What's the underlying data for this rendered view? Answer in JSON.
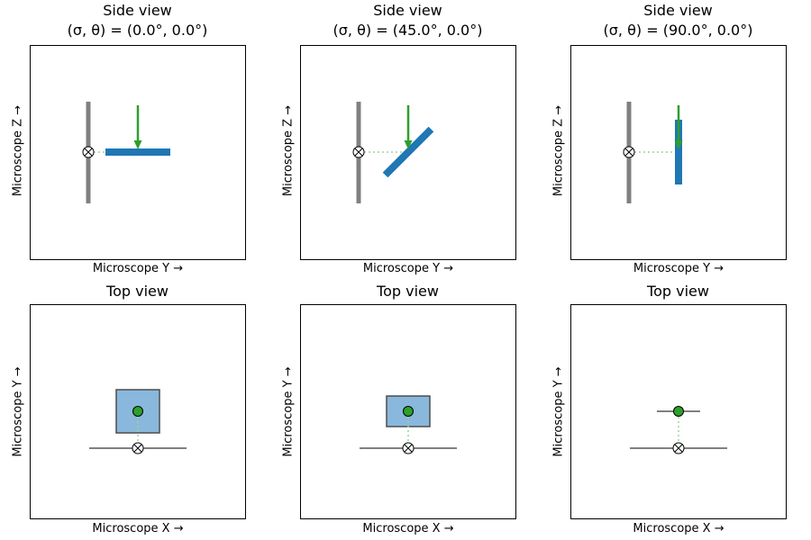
{
  "side_views": [
    {
      "title": "Side view",
      "subtitle_prefix": "(σ, θ) = ",
      "angles": "(0.0°, 0.0°)",
      "sigma": 0,
      "xlabel": "Microscope Y →",
      "ylabel": "Microscope Z →"
    },
    {
      "title": "Side view",
      "subtitle_prefix": "(σ, θ) = ",
      "angles": "(45.0°, 0.0°)",
      "sigma": 45,
      "xlabel": "Microscope Y →",
      "ylabel": "Microscope Z →"
    },
    {
      "title": "Side view",
      "subtitle_prefix": "(σ, θ) = ",
      "angles": "(90.0°, 0.0°)",
      "sigma": 90,
      "xlabel": "Microscope Y →",
      "ylabel": "Microscope Z →"
    }
  ],
  "top_views": [
    {
      "title": "Top view",
      "sigma": 0,
      "xlabel": "Microscope X →",
      "ylabel": "Microscope Y →"
    },
    {
      "title": "Top view",
      "sigma": 45,
      "xlabel": "Microscope X →",
      "ylabel": "Microscope Y →"
    },
    {
      "title": "Top view",
      "sigma": 90,
      "xlabel": "Microscope X →",
      "ylabel": "Microscope Y →"
    }
  ],
  "colors": {
    "stage": "#808080",
    "sample": "#1f77b4",
    "sample_fill": "#89b8dc",
    "beam": "#2ca02c",
    "link": "#98d598"
  }
}
